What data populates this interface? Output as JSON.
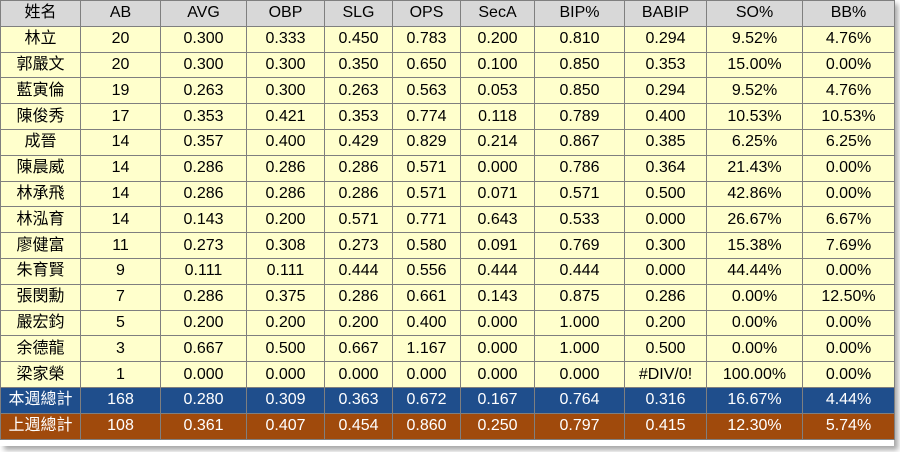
{
  "columns": [
    "姓名",
    "AB",
    "AVG",
    "OBP",
    "SLG",
    "OPS",
    "SecA",
    "BIP%",
    "BABIP",
    "SO%",
    "BB%"
  ],
  "rows": [
    [
      "林立",
      "20",
      "0.300",
      "0.333",
      "0.450",
      "0.783",
      "0.200",
      "0.810",
      "0.294",
      "9.52%",
      "4.76%"
    ],
    [
      "郭嚴文",
      "20",
      "0.300",
      "0.300",
      "0.350",
      "0.650",
      "0.100",
      "0.850",
      "0.353",
      "15.00%",
      "0.00%"
    ],
    [
      "藍寅倫",
      "19",
      "0.263",
      "0.300",
      "0.263",
      "0.563",
      "0.053",
      "0.850",
      "0.294",
      "9.52%",
      "4.76%"
    ],
    [
      "陳俊秀",
      "17",
      "0.353",
      "0.421",
      "0.353",
      "0.774",
      "0.118",
      "0.789",
      "0.400",
      "10.53%",
      "10.53%"
    ],
    [
      "成晉",
      "14",
      "0.357",
      "0.400",
      "0.429",
      "0.829",
      "0.214",
      "0.867",
      "0.385",
      "6.25%",
      "6.25%"
    ],
    [
      "陳晨威",
      "14",
      "0.286",
      "0.286",
      "0.286",
      "0.571",
      "0.000",
      "0.786",
      "0.364",
      "21.43%",
      "0.00%"
    ],
    [
      "林承飛",
      "14",
      "0.286",
      "0.286",
      "0.286",
      "0.571",
      "0.071",
      "0.571",
      "0.500",
      "42.86%",
      "0.00%"
    ],
    [
      "林泓育",
      "14",
      "0.143",
      "0.200",
      "0.571",
      "0.771",
      "0.643",
      "0.533",
      "0.000",
      "26.67%",
      "6.67%"
    ],
    [
      "廖健富",
      "11",
      "0.273",
      "0.308",
      "0.273",
      "0.580",
      "0.091",
      "0.769",
      "0.300",
      "15.38%",
      "7.69%"
    ],
    [
      "朱育賢",
      "9",
      "0.111",
      "0.111",
      "0.444",
      "0.556",
      "0.444",
      "0.444",
      "0.000",
      "44.44%",
      "0.00%"
    ],
    [
      "張閔勳",
      "7",
      "0.286",
      "0.375",
      "0.286",
      "0.661",
      "0.143",
      "0.875",
      "0.286",
      "0.00%",
      "12.50%"
    ],
    [
      "嚴宏鈞",
      "5",
      "0.200",
      "0.200",
      "0.200",
      "0.400",
      "0.000",
      "1.000",
      "0.200",
      "0.00%",
      "0.00%"
    ],
    [
      "余德龍",
      "3",
      "0.667",
      "0.500",
      "0.667",
      "1.167",
      "0.000",
      "1.000",
      "0.500",
      "0.00%",
      "0.00%"
    ],
    [
      "梁家榮",
      "1",
      "0.000",
      "0.000",
      "0.000",
      "0.000",
      "0.000",
      "0.000",
      "#DIV/0!",
      "100.00%",
      "0.00%"
    ]
  ],
  "summary_this_week": [
    "本週總計",
    "168",
    "0.280",
    "0.309",
    "0.363",
    "0.672",
    "0.167",
    "0.764",
    "0.316",
    "16.67%",
    "4.44%"
  ],
  "summary_last_week": [
    "上週總計",
    "108",
    "0.361",
    "0.407",
    "0.454",
    "0.860",
    "0.250",
    "0.797",
    "0.415",
    "12.30%",
    "5.74%"
  ],
  "colors": {
    "header_bg": "#d8d8d8",
    "row_bg": "#ffffcc",
    "this_week_bg": "#1f4e8c",
    "last_week_bg": "#a04a0c"
  }
}
